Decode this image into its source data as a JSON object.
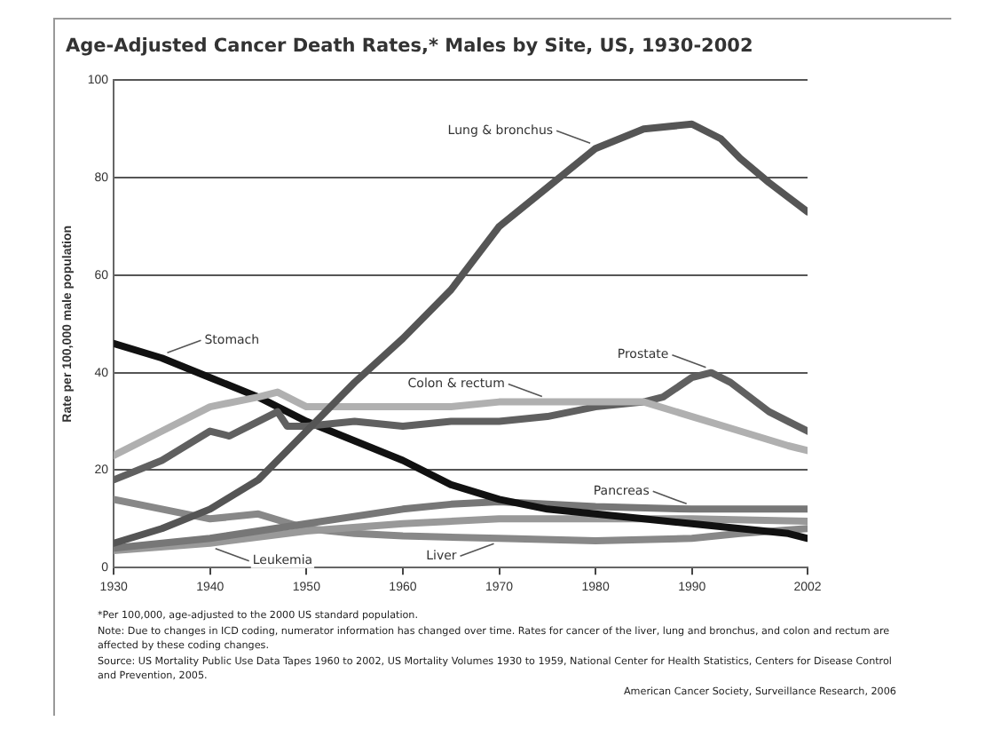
{
  "chart_data": {
    "type": "line",
    "title": "Age-Adjusted Cancer Death Rates,* Males by Site, US, 1930-2002",
    "ylabel": "Rate per 100,000 male population",
    "xlim": [
      1930,
      2002
    ],
    "xticks": [
      1930,
      1940,
      1950,
      1960,
      1970,
      1980,
      1990,
      2002
    ],
    "ylim": [
      0,
      100
    ],
    "yticks": [
      0,
      20,
      40,
      60,
      80,
      100
    ],
    "grid": "y",
    "legend": false,
    "marker": "none",
    "line_style": "solid",
    "series": [
      {
        "color": "#555555",
        "x": [
          1930,
          1935,
          1940,
          1945,
          1950,
          1955,
          1960,
          1965,
          1970,
          1975,
          1980,
          1985,
          1990,
          1993,
          1995,
          1998,
          2000,
          2002
        ],
        "values": [
          5,
          8,
          12,
          18,
          28,
          38,
          47,
          57,
          70,
          78,
          86,
          90,
          91,
          88,
          84,
          79,
          76,
          73
        ]
      },
      {
        "color": "#b0b0b0",
        "x": [
          1930,
          1935,
          1940,
          1945,
          1947,
          1950,
          1955,
          1960,
          1965,
          1970,
          1975,
          1980,
          1985,
          1990,
          1995,
          2000,
          2002
        ],
        "values": [
          23,
          28,
          33,
          35,
          36,
          33,
          33,
          33,
          33,
          34,
          34,
          34,
          34,
          31,
          28,
          25,
          24
        ]
      },
      {
        "color": "#606060",
        "x": [
          1930,
          1935,
          1940,
          1942,
          1945,
          1947,
          1948,
          1950,
          1955,
          1960,
          1965,
          1970,
          1975,
          1980,
          1985,
          1987,
          1990,
          1992,
          1994,
          1996,
          1998,
          2000,
          2002
        ],
        "values": [
          18,
          22,
          28,
          27,
          30,
          32,
          29,
          29,
          30,
          29,
          30,
          30,
          31,
          33,
          34,
          35,
          39,
          40,
          38,
          35,
          32,
          30,
          28
        ]
      },
      {
        "color": "#111111",
        "x": [
          1930,
          1935,
          1940,
          1945,
          1950,
          1955,
          1960,
          1965,
          1970,
          1975,
          1980,
          1985,
          1990,
          1995,
          2000,
          2002
        ],
        "values": [
          46,
          43,
          39,
          35,
          30,
          26,
          22,
          17,
          14,
          12,
          11,
          10,
          9,
          8,
          7,
          6
        ]
      },
      {
        "color": "#777777",
        "x": [
          1930,
          1940,
          1950,
          1960,
          1965,
          1970,
          1980,
          1990,
          2002
        ],
        "values": [
          4,
          6,
          9,
          12,
          13,
          13.5,
          12.5,
          12,
          12
        ]
      },
      {
        "color": "#999999",
        "x": [
          1930,
          1940,
          1950,
          1960,
          1970,
          1980,
          1990,
          2002
        ],
        "values": [
          3.5,
          5,
          7.5,
          9,
          10,
          10,
          10,
          9.5
        ]
      },
      {
        "color": "#888888",
        "x": [
          1930,
          1935,
          1940,
          1945,
          1950,
          1955,
          1960,
          1970,
          1980,
          1990,
          1995,
          2002
        ],
        "values": [
          14,
          12,
          10,
          11,
          8,
          7,
          6.5,
          6,
          5.5,
          6,
          7,
          8
        ]
      }
    ],
    "annotations": [
      {
        "text": "Lung & bronchus",
        "x": 1980,
        "y": 86
      },
      {
        "text": "Colon & rectum",
        "x": 1975,
        "y": 34
      },
      {
        "text": "Prostate",
        "x": 1992,
        "y": 40
      },
      {
        "text": "Stomach",
        "x": 1935,
        "y": 43
      },
      {
        "text": "Pancreas",
        "x": 1990,
        "y": 12
      },
      {
        "text": "Leukemia",
        "x": 1940,
        "y": 5
      },
      {
        "text": "Liver",
        "x": 1970,
        "y": 6
      },
      "*Per 100,000, age-adjusted to the 2000 US standard population.",
      "Note: Due to changes in ICD coding, numerator information has changed over time. Rates for cancer of the liver, lung and bronchus, and colon and rectum are affected by these coding changes.",
      "Source: US Mortality Public Use Data Tapes 1960 to 2002, US Mortality Volumes 1930 to 1959, National Center for Health Statistics, Centers for Disease Control and Prevention, 2005.",
      "American Cancer Society, Surveillance Research, 2006"
    ]
  }
}
